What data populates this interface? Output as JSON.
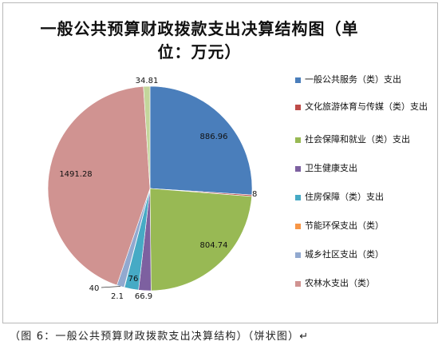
{
  "caption": "（图 6：一般公共预算财政拨款支出决算结构）（饼状图）↵",
  "chart_data": {
    "type": "pie",
    "title_line1": "一般公共预算财政拨款支出决算结构图（单",
    "title_line2": "位：万元）",
    "legend_position": "right",
    "slices": [
      {
        "label": "一般公共服务（类）支出",
        "value": 886.96,
        "value_label": "886.96",
        "color": "#4a7ebb"
      },
      {
        "label": "文化旅游体育与传媒（类）支出",
        "value": 8,
        "value_label": "8",
        "color": "#be4b48"
      },
      {
        "label": "社会保障和就业（类）支出",
        "value": 804.74,
        "value_label": "804.74",
        "color": "#98b954"
      },
      {
        "label": "卫生健康支出",
        "value": 66.9,
        "value_label": "66.9",
        "color": "#7d60a0"
      },
      {
        "label": "住房保障（类）支出",
        "value": 76,
        "value_label": "76",
        "color": "#46aac5"
      },
      {
        "label": "节能环保支出（类）",
        "value": 2.1,
        "value_label": "2.1",
        "color": "#f79646"
      },
      {
        "label": "城乡社区支出（类）",
        "value": 40,
        "value_label": "40",
        "color": "#92a9cf"
      },
      {
        "label": "农林水支出（类）",
        "value": 1491.28,
        "value_label": "1491.28",
        "color": "#d09391"
      },
      {
        "value": 34.81,
        "value_label": "34.81",
        "color": "#c3d69b"
      }
    ]
  }
}
